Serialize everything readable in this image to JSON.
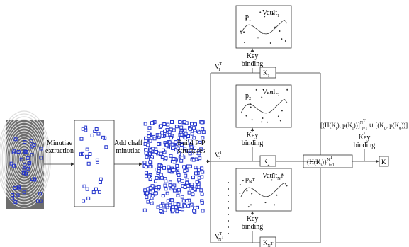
{
  "steps": [
    [
      "Minutiae",
      "extraction"
    ],
    [
      "Add chaff",
      "minutiae"
    ],
    [
      "Build P-P",
      "structures"
    ]
  ],
  "branches": [
    {
      "vault": [
        [
          "Vault",
          "base"
        ],
        [
          "1",
          "sub"
        ]
      ],
      "point": [
        [
          "p",
          "base"
        ],
        [
          "1",
          "sub"
        ]
      ],
      "binding": [
        "Key",
        "binding"
      ],
      "key": [
        [
          "K",
          "base"
        ],
        [
          "1",
          "sub"
        ]
      ],
      "template": [
        [
          "V",
          "base"
        ],
        [
          "T",
          "sup"
        ],
        [
          "1",
          "sub"
        ]
      ]
    },
    {
      "vault": [
        [
          "Vault",
          "base"
        ],
        [
          "2",
          "sub"
        ]
      ],
      "point": [
        [
          "p",
          "base"
        ],
        [
          "2",
          "sub"
        ]
      ],
      "binding": [
        "Key",
        "binding"
      ],
      "key": [
        [
          "K",
          "base"
        ],
        [
          "2",
          "sub"
        ]
      ],
      "template": [
        [
          "V",
          "base"
        ],
        [
          "T",
          "sup"
        ],
        [
          "2",
          "sub"
        ]
      ]
    },
    {
      "vault": [
        [
          "Vault",
          "base"
        ],
        [
          "N",
          "sub"
        ],
        [
          "T",
          "subsup"
        ]
      ],
      "point": [
        [
          "p",
          "base"
        ],
        [
          "N",
          "sub"
        ],
        [
          "T",
          "subsup"
        ]
      ],
      "binding": [
        "Key",
        "binding"
      ],
      "key": [
        [
          "K",
          "base"
        ],
        [
          "N",
          "sub"
        ],
        [
          "T",
          "subsup"
        ]
      ],
      "template": [
        [
          "V",
          "base"
        ],
        [
          "T",
          "sup"
        ],
        [
          "N",
          "sub"
        ],
        [
          "T",
          "subsup"
        ]
      ]
    }
  ],
  "hash_box": [
    [
      "{H(K",
      "base"
    ],
    [
      "i",
      "sub"
    ],
    [
      ")}",
      "base"
    ],
    [
      "N",
      "sup"
    ],
    [
      "T",
      "supsup"
    ],
    [
      "i=1",
      "sub"
    ]
  ],
  "final_binding": [
    "Key",
    "binding"
  ],
  "formula": [
    [
      "[(H(K",
      "base"
    ],
    [
      "i",
      "sub"
    ],
    "_",
    [
      "), p(K",
      "base"
    ],
    [
      "i",
      "sub"
    ],
    [
      "))]",
      "base"
    ],
    [
      "N",
      "sup"
    ],
    [
      "T",
      "supsup"
    ],
    [
      "i=1",
      "sub"
    ],
    [
      " ∪ [(K",
      "base"
    ],
    [
      "0",
      "sub"
    ],
    [
      ", p(K",
      "base"
    ],
    [
      "0",
      "sub"
    ],
    [
      "))]",
      "base"
    ]
  ],
  "key_out": [
    [
      "K",
      "base"
    ]
  ]
}
